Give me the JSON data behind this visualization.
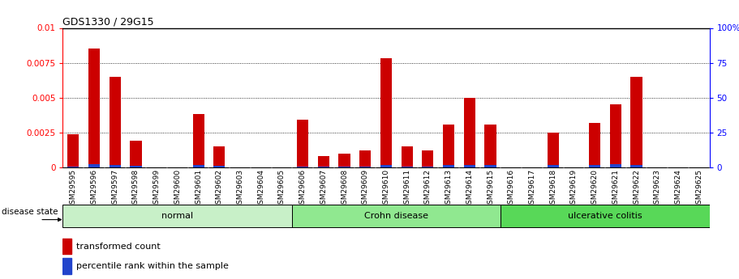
{
  "title": "GDS1330 / 29G15",
  "samples": [
    "GSM29595",
    "GSM29596",
    "GSM29597",
    "GSM29598",
    "GSM29599",
    "GSM29600",
    "GSM29601",
    "GSM29602",
    "GSM29603",
    "GSM29604",
    "GSM29605",
    "GSM29606",
    "GSM29607",
    "GSM29608",
    "GSM29609",
    "GSM29610",
    "GSM29611",
    "GSM29612",
    "GSM29613",
    "GSM29614",
    "GSM29615",
    "GSM29616",
    "GSM29617",
    "GSM29618",
    "GSM29619",
    "GSM29620",
    "GSM29621",
    "GSM29622",
    "GSM29623",
    "GSM29624",
    "GSM29625"
  ],
  "transformed_count": [
    0.0024,
    0.0085,
    0.0065,
    0.0019,
    0.0,
    0.0,
    0.0038,
    0.0015,
    0.0,
    0.0,
    0.0,
    0.0034,
    0.0008,
    0.001,
    0.0012,
    0.0078,
    0.0015,
    0.0012,
    0.0031,
    0.005,
    0.0031,
    0.0,
    0.0,
    0.0025,
    0.0,
    0.0032,
    0.0045,
    0.0065,
    0.0,
    0.0,
    0.0
  ],
  "percentile_rank": [
    5,
    15,
    13,
    8,
    0,
    0,
    12,
    7,
    0,
    0,
    0,
    5,
    5,
    4,
    5,
    13,
    5,
    4,
    13,
    13,
    12,
    0,
    0,
    13,
    0,
    13,
    14,
    13,
    0,
    0,
    0
  ],
  "groups": [
    {
      "label": "normal",
      "start": 0,
      "end": 10,
      "color": "#c8f0c8"
    },
    {
      "label": "Crohn disease",
      "start": 11,
      "end": 20,
      "color": "#90e890"
    },
    {
      "label": "ulcerative colitis",
      "start": 21,
      "end": 30,
      "color": "#58d858"
    }
  ],
  "ylim_left": [
    0,
    0.01
  ],
  "ylim_right": [
    0,
    100
  ],
  "yticks_left": [
    0,
    0.0025,
    0.005,
    0.0075,
    0.01
  ],
  "yticks_right": [
    0,
    25,
    50,
    75,
    100
  ],
  "bar_color_red": "#cc0000",
  "bar_color_blue": "#2244cc",
  "legend_red": "transformed count",
  "legend_blue": "percentile rank within the sample",
  "bar_width": 0.55,
  "pr_scale_factor": 1.5e-05,
  "xtick_bg_color": "#c8c8c8"
}
